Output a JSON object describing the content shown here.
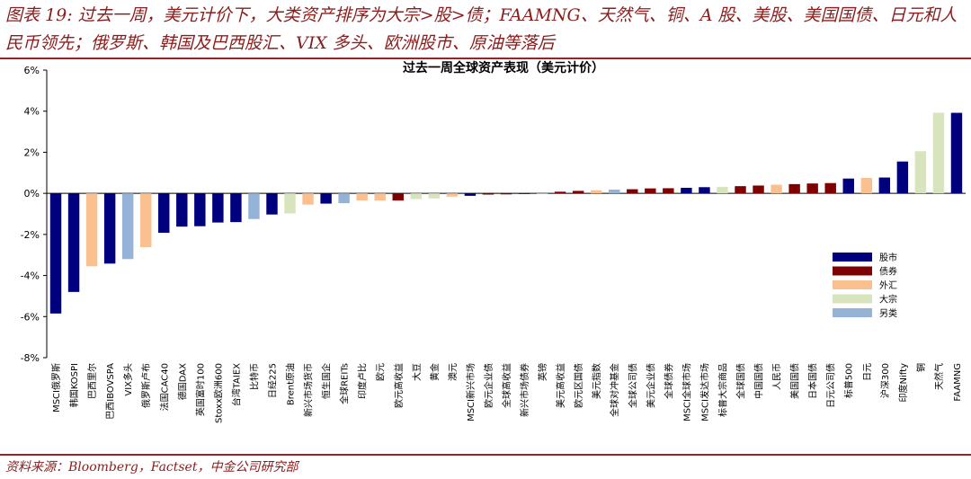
{
  "figure_title": "图表 19: 过去一周，美元计价下，大类资产排序为大宗>股>债；FAAMNG、天然气、铜、A 股、美股、美国国债、日元和人民币领先；俄罗斯、韩国及巴西股汇、VIX 多头、欧洲股市、原油等落后",
  "source": "资料来源：Bloomberg，Factset，中金公司研究部",
  "colors": {
    "股市": "#00007f",
    "债券": "#7f0000",
    "外汇": "#fac090",
    "大宗": "#d7e4bd",
    "另类": "#95b3d7"
  },
  "chart_data": {
    "type": "bar",
    "title": "过去一周全球资产表现（美元计价）",
    "xlabel": "",
    "ylabel": "",
    "ylim": [
      -8,
      6
    ],
    "ytick_step": 2,
    "ytick_suffix": "%",
    "grid": false,
    "legend_position": "right",
    "legend": [
      "股市",
      "债券",
      "外汇",
      "大宗",
      "另类"
    ],
    "categories": [
      "MSCI俄罗斯",
      "韩国KOSPI",
      "巴西里尔",
      "巴西IBOVSPA",
      "VIX多头",
      "俄罗斯卢布",
      "法国CAC40",
      "德国DAX",
      "英国富时100",
      "Stoxx欧洲600",
      "台湾TAIEX",
      "比特币",
      "日经225",
      "Brent原油",
      "新兴市场货币",
      "恒生国企",
      "全球REITs",
      "印度卢比",
      "欧元",
      "欧元高收益",
      "大豆",
      "黄金",
      "澳元",
      "MSCI新兴市场",
      "欧元企业债",
      "全球高收益",
      "新兴市场债券",
      "英镑",
      "美元高收益",
      "欧元区国债",
      "美元指数",
      "全球对冲基金",
      "全球公司债",
      "美元企业债",
      "全球债券",
      "MSCI全球市场",
      "MSCI发达市场",
      "标普大宗商品",
      "全球国债",
      "中国国债",
      "人民币",
      "美国国债",
      "日本国债",
      "日元公司债",
      "标普500",
      "日元",
      "沪深300",
      "印度Nifty",
      "铜",
      "天然气",
      "FAAMNG"
    ],
    "values": [
      -5.85,
      -4.8,
      -3.55,
      -3.42,
      -3.2,
      -2.62,
      -1.92,
      -1.62,
      -1.6,
      -1.42,
      -1.4,
      -1.25,
      -1.03,
      -0.98,
      -0.55,
      -0.5,
      -0.48,
      -0.35,
      -0.35,
      -0.35,
      -0.28,
      -0.25,
      -0.16,
      -0.12,
      -0.06,
      -0.05,
      -0.03,
      -0.02,
      0.08,
      0.12,
      0.15,
      0.18,
      0.2,
      0.24,
      0.25,
      0.27,
      0.3,
      0.32,
      0.35,
      0.38,
      0.42,
      0.45,
      0.48,
      0.5,
      0.72,
      0.75,
      0.77,
      1.55,
      2.05,
      3.92,
      3.92
    ],
    "classes": [
      "股市",
      "股市",
      "外汇",
      "股市",
      "另类",
      "外汇",
      "股市",
      "股市",
      "股市",
      "股市",
      "股市",
      "另类",
      "股市",
      "大宗",
      "外汇",
      "股市",
      "另类",
      "外汇",
      "外汇",
      "债券",
      "大宗",
      "大宗",
      "外汇",
      "股市",
      "债券",
      "债券",
      "债券",
      "外汇",
      "债券",
      "债券",
      "外汇",
      "另类",
      "债券",
      "债券",
      "债券",
      "股市",
      "股市",
      "大宗",
      "债券",
      "债券",
      "外汇",
      "债券",
      "债券",
      "债券",
      "股市",
      "外汇",
      "股市",
      "股市",
      "大宗",
      "大宗",
      "股市"
    ]
  }
}
